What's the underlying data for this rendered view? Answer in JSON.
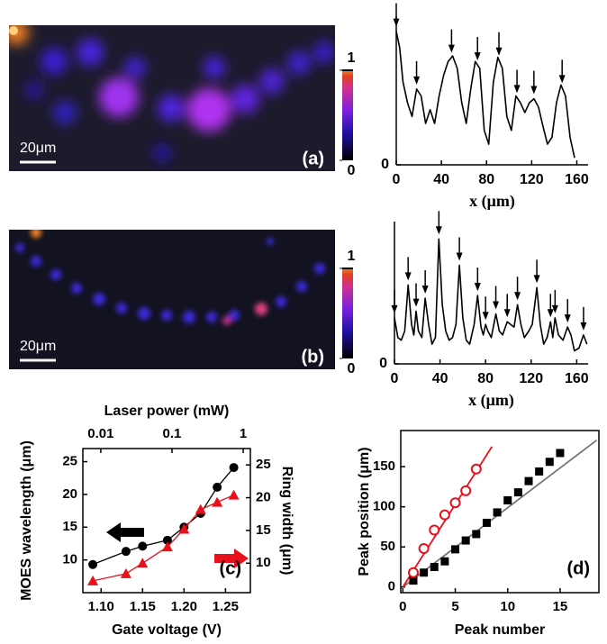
{
  "chart_data": [
    {
      "type": "heatmap",
      "label": "(a)",
      "scale_bar": "20μm",
      "clim": [
        0,
        1
      ],
      "colorbar_ticks": [
        1,
        0
      ]
    },
    {
      "type": "line",
      "xlabel": "x (μm)",
      "color": "#000000",
      "x": [
        0,
        3,
        6,
        10,
        14,
        18,
        22,
        26,
        30,
        34,
        38,
        42,
        46,
        50,
        54,
        58,
        62,
        66,
        70,
        74,
        78,
        82,
        86,
        90,
        94,
        98,
        102,
        106,
        110,
        114,
        118,
        122,
        126,
        130,
        134,
        138,
        142,
        146,
        150,
        154,
        158
      ],
      "values": [
        0.97,
        0.85,
        0.6,
        0.45,
        0.35,
        0.55,
        0.5,
        0.3,
        0.4,
        0.3,
        0.5,
        0.65,
        0.75,
        0.79,
        0.7,
        0.45,
        0.3,
        0.55,
        0.75,
        0.7,
        0.25,
        0.15,
        0.6,
        0.78,
        0.7,
        0.35,
        0.25,
        0.5,
        0.45,
        0.38,
        0.45,
        0.48,
        0.42,
        0.28,
        0.15,
        0.2,
        0.45,
        0.58,
        0.5,
        0.2,
        0.05
      ],
      "xlim": [
        0,
        170
      ],
      "xticks": [
        0,
        40,
        80,
        120,
        160
      ],
      "ylim": [
        0,
        1
      ],
      "yticks": [
        0
      ],
      "arrows": [
        0,
        18,
        49,
        72,
        91,
        107,
        122,
        147
      ]
    },
    {
      "type": "heatmap",
      "label": "(b)",
      "scale_bar": "20μm",
      "clim": [
        0,
        1
      ],
      "colorbar_ticks": [
        1,
        0
      ]
    },
    {
      "type": "line",
      "xlabel": "x (μm)",
      "color": "#000000",
      "x": [
        0,
        3,
        6,
        9,
        12,
        15,
        17,
        19,
        21,
        24,
        27,
        30,
        33,
        36,
        39,
        42,
        45,
        48,
        51,
        54,
        57,
        60,
        63,
        66,
        70,
        73,
        76,
        78,
        80,
        82,
        85,
        89,
        92,
        95,
        99,
        102,
        105,
        108,
        111,
        114,
        118,
        121,
        125,
        128,
        131,
        134,
        137,
        139,
        141,
        144,
        148,
        152,
        155,
        158,
        162,
        166,
        169
      ],
      "values": [
        0.35,
        0.2,
        0.18,
        0.25,
        0.6,
        0.3,
        0.22,
        0.4,
        0.25,
        0.2,
        0.5,
        0.3,
        0.15,
        0.2,
        0.95,
        0.45,
        0.25,
        0.18,
        0.2,
        0.3,
        0.75,
        0.35,
        0.18,
        0.15,
        0.3,
        0.52,
        0.28,
        0.22,
        0.3,
        0.25,
        0.2,
        0.38,
        0.25,
        0.22,
        0.32,
        0.3,
        0.28,
        0.45,
        0.3,
        0.2,
        0.25,
        0.3,
        0.58,
        0.3,
        0.15,
        0.2,
        0.32,
        0.2,
        0.35,
        0.22,
        0.18,
        0.28,
        0.22,
        0.1,
        0.12,
        0.22,
        0.15
      ],
      "xlim": [
        0,
        170
      ],
      "xticks": [
        0,
        40,
        80,
        120,
        160
      ],
      "ylim": [
        0,
        1
      ],
      "yticks": [
        0
      ],
      "arrows": [
        0,
        12,
        19,
        27,
        39,
        57,
        73,
        80,
        89,
        99,
        108,
        125,
        137,
        141,
        152,
        166
      ]
    },
    {
      "type": "dual_line",
      "label": "(c)",
      "xlabel": "Gate voltage (V)",
      "x2label": "Laser power (mW)",
      "ylabel": "MOES wavelength (μm)",
      "y2label": "Ring width (μm)",
      "x": [
        1.09,
        1.13,
        1.15,
        1.18,
        1.2,
        1.22,
        1.24,
        1.26
      ],
      "xlim": [
        1.078,
        1.28
      ],
      "xticks": [
        {
          "value": 1.1,
          "label": "1.10"
        },
        {
          "value": 1.15,
          "label": "1.15"
        },
        {
          "value": 1.2,
          "label": "1.20"
        },
        {
          "value": 1.25,
          "label": "1.25"
        }
      ],
      "x2scale": "log",
      "x2lim": [
        0.0056,
        1.26
      ],
      "x2ticks": [
        0.01,
        0.1,
        1
      ],
      "ylim": [
        5,
        27
      ],
      "yticks": [
        10,
        15,
        20,
        25
      ],
      "y2lim": [
        5.5,
        27.5
      ],
      "y2ticks": [
        10,
        15,
        20,
        25
      ],
      "series": [
        {
          "color": "#000000",
          "marker": "circle",
          "values": [
            9.3,
            11.3,
            12.1,
            13.0,
            15.0,
            17.1,
            21.1,
            24.1
          ]
        },
        {
          "color": "#e8101a",
          "marker": "triangle",
          "axis": "y2",
          "values": [
            7.3,
            8.4,
            10.0,
            12.5,
            15.2,
            18.2,
            19.3,
            20.4
          ]
        }
      ]
    },
    {
      "type": "scatter",
      "label": "(d)",
      "xlabel": "Peak number",
      "ylabel": "Peak position (μm)",
      "xlim": [
        -0.2,
        18.7
      ],
      "xticks": [
        0,
        5,
        10,
        15
      ],
      "ylim": [
        -7,
        195
      ],
      "yticks": [
        0,
        50,
        100,
        150
      ],
      "series": [
        {
          "color": "#000000",
          "marker": "square",
          "fit_color": "#777777",
          "fit": [
            0,
            0,
            18.5,
            183
          ],
          "x": [
            1,
            2,
            3,
            4,
            5,
            6,
            7,
            8,
            9,
            10,
            11,
            12,
            13,
            14,
            15
          ],
          "values": [
            8,
            18,
            25,
            32,
            47,
            58,
            66,
            80,
            93,
            108,
            118,
            132,
            144,
            156,
            167
          ]
        },
        {
          "color": "#e8101a",
          "marker": "circle-open",
          "fit_color": "#e8101a",
          "fit": [
            0,
            0,
            8.5,
            175
          ],
          "x": [
            1,
            2,
            3,
            4,
            5,
            6,
            7
          ],
          "values": [
            18,
            48,
            71,
            90,
            105,
            120,
            147
          ]
        }
      ]
    }
  ]
}
